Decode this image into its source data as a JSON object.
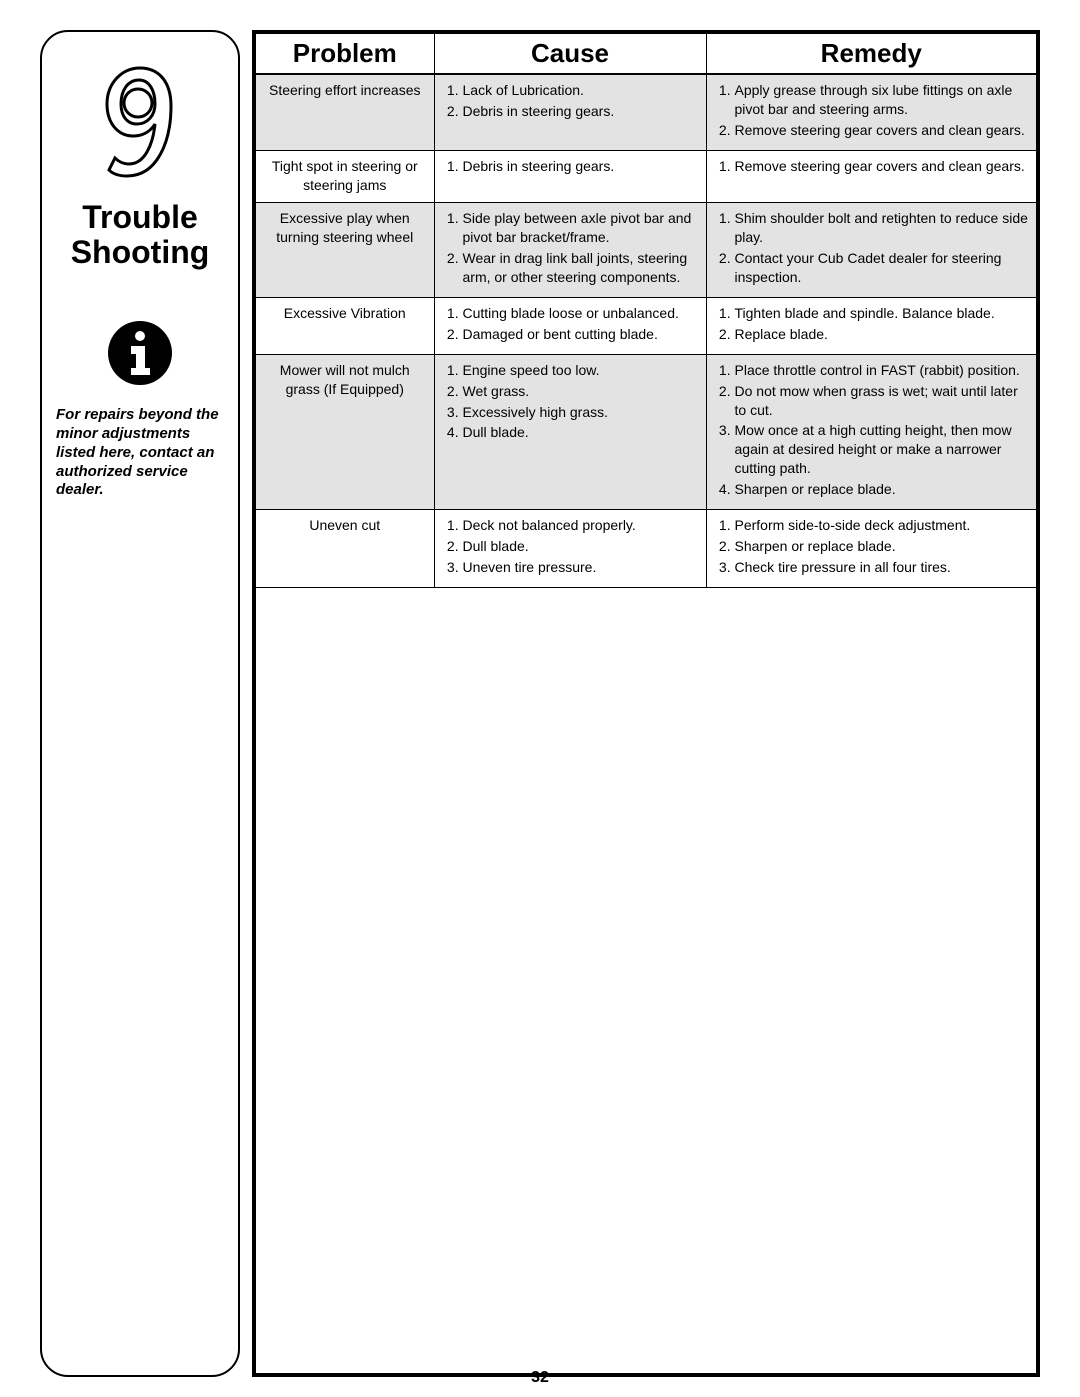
{
  "sidebar": {
    "chapter_number": "9",
    "title_line1": "Trouble",
    "title_line2": "Shooting",
    "note": "For repairs beyond the minor adjustments listed here, contact an authorized service dealer."
  },
  "headers": {
    "problem": "Problem",
    "cause": "Cause",
    "remedy": "Remedy"
  },
  "rows": [
    {
      "shaded": true,
      "problem": "Steering effort increases",
      "causes": [
        "Lack of Lubrication.",
        "Debris in steering gears."
      ],
      "remedies": [
        "Apply grease through six lube fittings on axle pivot bar and steering arms.",
        "Remove steering gear covers and clean gears."
      ]
    },
    {
      "shaded": false,
      "problem": "Tight spot in steering or steering jams",
      "causes": [
        "Debris in steering gears."
      ],
      "remedies": [
        "Remove steering gear covers and clean gears."
      ]
    },
    {
      "shaded": true,
      "problem": "Excessive play when turning steering wheel",
      "causes": [
        "Side play between axle pivot bar and pivot bar bracket/frame.",
        "Wear in drag link ball joints, steering arm, or other steering components."
      ],
      "remedies": [
        "Shim shoulder bolt and retighten to reduce side play.",
        "Contact your Cub Cadet dealer for steering inspection."
      ]
    },
    {
      "shaded": false,
      "problem": "Excessive Vibration",
      "causes": [
        "Cutting blade loose or unbalanced.",
        "Damaged or bent cutting blade."
      ],
      "remedies": [
        "Tighten blade and spindle. Balance blade.",
        "Replace blade."
      ]
    },
    {
      "shaded": true,
      "problem": "Mower will not mulch grass (If Equipped)",
      "causes": [
        "Engine speed too low.",
        "Wet grass.",
        "Excessively high grass.",
        "Dull blade."
      ],
      "remedies": [
        "Place throttle control in FAST (rabbit) position.",
        "Do not mow when grass is wet; wait until later to cut.",
        "Mow once at a high cutting height, then mow again at desired height or make a narrower cutting path.",
        "Sharpen or replace blade."
      ]
    },
    {
      "shaded": false,
      "problem": "Uneven cut",
      "causes": [
        "Deck not balanced properly.",
        "Dull blade.",
        "Uneven tire pressure."
      ],
      "remedies": [
        "Perform side-to-side deck adjustment.",
        "Sharpen or replace blade.",
        "Check tire pressure in all four tires."
      ]
    }
  ],
  "page_number": "32",
  "colors": {
    "shaded_bg": "#e3e3e3",
    "border": "#000000",
    "text": "#000000",
    "page_bg": "#ffffff"
  }
}
